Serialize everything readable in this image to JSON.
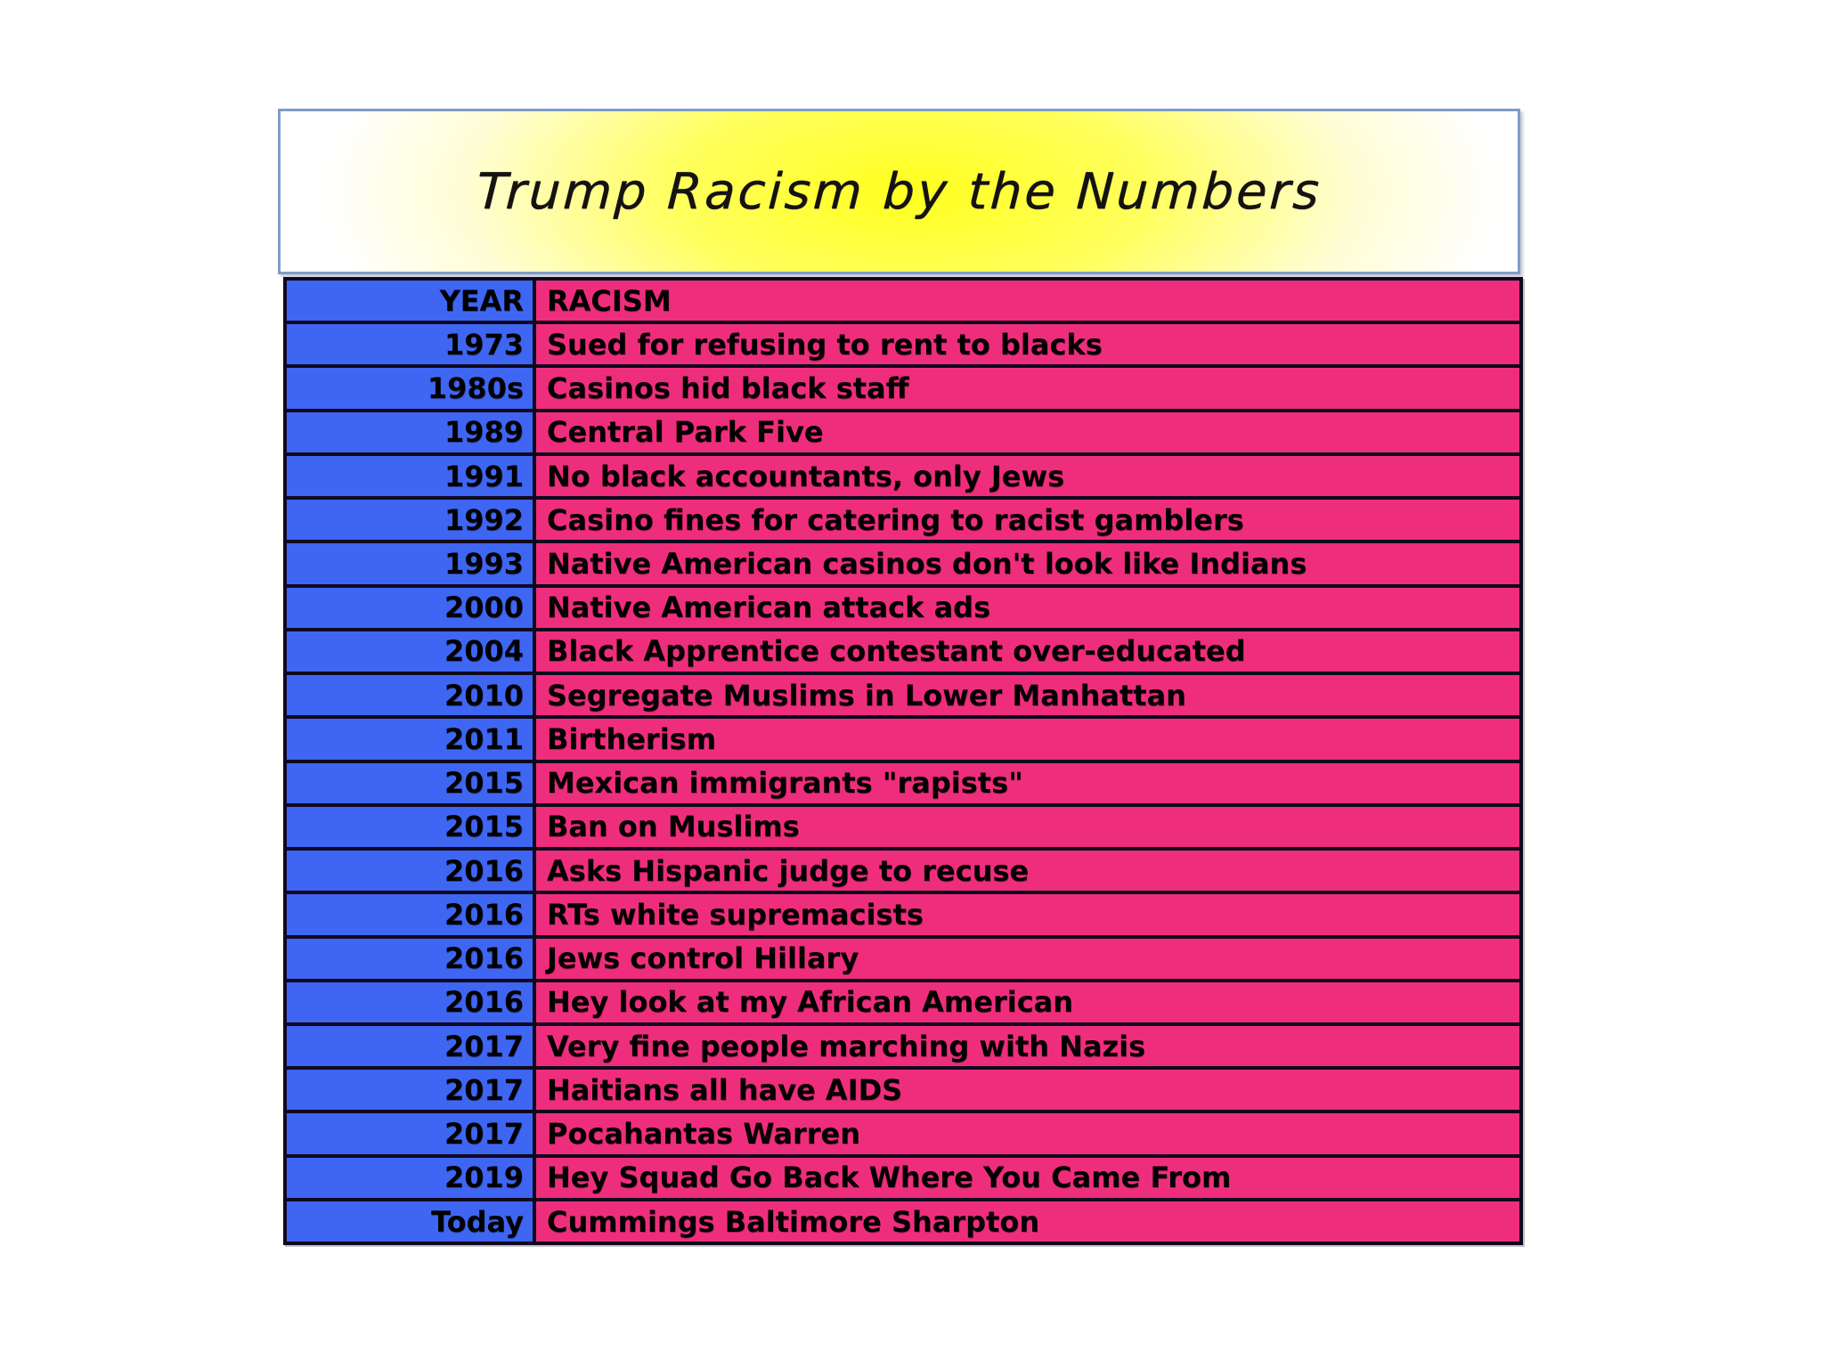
{
  "banner": {
    "title": "Trump Racism by the Numbers"
  },
  "table": {
    "columns": [
      "YEAR",
      "RACISM"
    ],
    "rows": [
      {
        "year": "1973",
        "racism": "Sued for refusing to rent to blacks"
      },
      {
        "year": "1980s",
        "racism": "Casinos hid black staff"
      },
      {
        "year": "1989",
        "racism": "Central Park Five"
      },
      {
        "year": "1991",
        "racism": "No black accountants, only Jews"
      },
      {
        "year": "1992",
        "racism": "Casino fines for catering to racist gamblers"
      },
      {
        "year": "1993",
        "racism": "Native American casinos don't look like Indians"
      },
      {
        "year": "2000",
        "racism": "Native American attack ads"
      },
      {
        "year": "2004",
        "racism": "Black Apprentice contestant over-educated"
      },
      {
        "year": "2010",
        "racism": "Segregate Muslims in Lower Manhattan"
      },
      {
        "year": "2011",
        "racism": "Birtherism"
      },
      {
        "year": "2015",
        "racism": "Mexican immigrants \"rapists\""
      },
      {
        "year": "2015",
        "racism": "Ban on Muslims"
      },
      {
        "year": "2016",
        "racism": "Asks Hispanic judge to recuse"
      },
      {
        "year": "2016",
        "racism": "RTs white supremacists"
      },
      {
        "year": "2016",
        "racism": "Jews control Hillary"
      },
      {
        "year": "2016",
        "racism": "Hey look at my African American"
      },
      {
        "year": "2017",
        "racism": "Very fine people marching with Nazis"
      },
      {
        "year": "2017",
        "racism": "Haitians all have AIDS"
      },
      {
        "year": "2017",
        "racism": "Pocahantas Warren"
      },
      {
        "year": "2019",
        "racism": "Hey Squad Go Back Where You Came From"
      },
      {
        "year": "Today",
        "racism": "Cummings Baltimore Sharpton"
      }
    ]
  },
  "colors": {
    "year_column": "#3e66f3",
    "racism_column": "#ee2e7c",
    "cell_border": "#10091e",
    "banner_border": "#7e9dc8",
    "banner_yellow": "#ffff1f",
    "text": "#000000"
  },
  "chart_data": {
    "type": "table",
    "title": "Trump Racism by the Numbers",
    "columns": [
      "YEAR",
      "RACISM"
    ],
    "rows": [
      [
        "1973",
        "Sued for refusing to rent to blacks"
      ],
      [
        "1980s",
        "Casinos hid black staff"
      ],
      [
        "1989",
        "Central Park Five"
      ],
      [
        "1991",
        "No black accountants, only Jews"
      ],
      [
        "1992",
        "Casino fines for catering to racist gamblers"
      ],
      [
        "1993",
        "Native American casinos don't look like Indians"
      ],
      [
        "2000",
        "Native American attack ads"
      ],
      [
        "2004",
        "Black Apprentice contestant over-educated"
      ],
      [
        "2010",
        "Segregate Muslims in Lower Manhattan"
      ],
      [
        "2011",
        "Birtherism"
      ],
      [
        "2015",
        "Mexican immigrants \"rapists\""
      ],
      [
        "2015",
        "Ban on Muslims"
      ],
      [
        "2016",
        "Asks Hispanic judge to recuse"
      ],
      [
        "2016",
        "RTs white supremacists"
      ],
      [
        "2016",
        "Jews control Hillary"
      ],
      [
        "2016",
        "Hey look at my African American"
      ],
      [
        "2017",
        "Very fine people marching with Nazis"
      ],
      [
        "2017",
        "Haitians all have AIDS"
      ],
      [
        "2017",
        "Pocahantas Warren"
      ],
      [
        "2019",
        "Hey Squad Go Back Where You Came From"
      ],
      [
        "Today",
        "Cummings Baltimore Sharpton"
      ]
    ]
  }
}
